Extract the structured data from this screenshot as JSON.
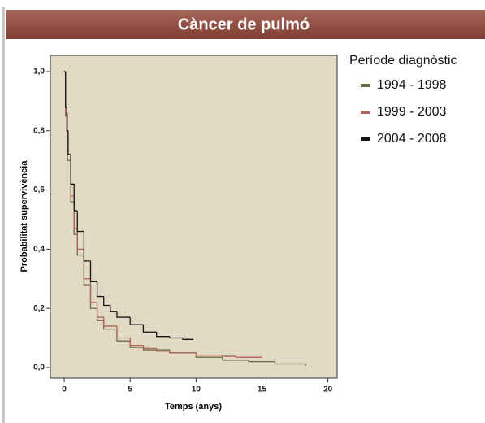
{
  "chart_data": {
    "type": "step",
    "title": "Càncer de pulmó",
    "x_label": "Temps (anys)",
    "y_label": "Probabilitat supervivència",
    "legend_title": "Període diagnòstic",
    "xlim": [
      -1.05,
      20.7
    ],
    "ylim": [
      -0.036,
      1.055
    ],
    "xticks": [
      0,
      5,
      10,
      15,
      20
    ],
    "yticks": [
      {
        "value": 0,
        "label": "0,0"
      },
      {
        "value": 0.2,
        "label": "0,2"
      },
      {
        "value": 0.4,
        "label": "0,4"
      },
      {
        "value": 0.6,
        "label": "0,6"
      },
      {
        "value": 0.8,
        "label": "0,8"
      },
      {
        "value": 1,
        "label": "1,0"
      }
    ],
    "series": [
      {
        "name": "1994 - 1998",
        "color": "#6b6b3f",
        "x": [
          0,
          0.1,
          0.25,
          0.5,
          0.75,
          1,
          1.5,
          2,
          2.5,
          3,
          4,
          5,
          6,
          8,
          10,
          12,
          14,
          16,
          18.3
        ],
        "values": [
          1.0,
          0.85,
          0.7,
          0.56,
          0.45,
          0.38,
          0.28,
          0.2,
          0.16,
          0.13,
          0.09,
          0.068,
          0.06,
          0.05,
          0.035,
          0.025,
          0.02,
          0.012,
          0.005
        ]
      },
      {
        "name": "1999 - 2003",
        "color": "#b0645a",
        "x": [
          0,
          0.1,
          0.25,
          0.5,
          0.75,
          1,
          1.5,
          2,
          2.5,
          3,
          4,
          5,
          6,
          7,
          8,
          10,
          12,
          13,
          15
        ],
        "values": [
          1.0,
          0.86,
          0.72,
          0.58,
          0.47,
          0.4,
          0.3,
          0.22,
          0.17,
          0.14,
          0.1,
          0.075,
          0.065,
          0.055,
          0.05,
          0.042,
          0.038,
          0.035,
          0.035
        ]
      },
      {
        "name": "2004 - 2008",
        "color": "#1a1414",
        "x": [
          0,
          0.1,
          0.2,
          0.3,
          0.5,
          0.75,
          1,
          1.5,
          2,
          2.5,
          3,
          3.5,
          4,
          5,
          6,
          7,
          8,
          9,
          9.8
        ],
        "values": [
          1.0,
          0.88,
          0.8,
          0.72,
          0.62,
          0.53,
          0.46,
          0.36,
          0.29,
          0.24,
          0.21,
          0.19,
          0.17,
          0.145,
          0.12,
          0.105,
          0.1,
          0.095,
          0.095
        ]
      }
    ]
  }
}
